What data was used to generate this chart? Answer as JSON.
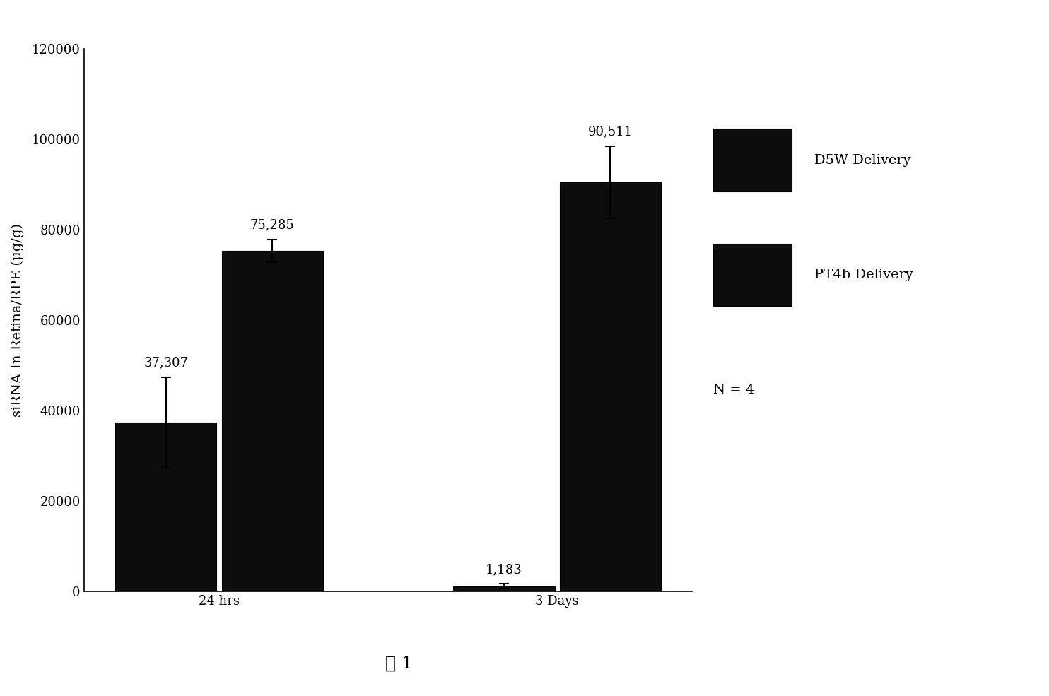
{
  "groups": [
    "24 hrs",
    "3 Days"
  ],
  "series": [
    "D5W Delivery",
    "PT4b Delivery"
  ],
  "values": [
    [
      37307,
      75285
    ],
    [
      1183,
      90511
    ]
  ],
  "errors": [
    [
      10000,
      2500
    ],
    [
      500,
      8000
    ]
  ],
  "value_labels": [
    [
      "37,307",
      "75,285"
    ],
    [
      "1,183",
      "90,511"
    ]
  ],
  "bar_colors": [
    "#0d0d0d",
    "#0d0d0d"
  ],
  "ylabel": "siRNA In Retina/RPE (μg/g)",
  "ylim": [
    0,
    120000
  ],
  "yticks": [
    0,
    20000,
    40000,
    60000,
    80000,
    100000,
    120000
  ],
  "ytick_labels": [
    "0",
    "20000",
    "40000",
    "60000",
    "80000",
    "100000",
    "120000"
  ],
  "legend_labels": [
    "D5W Delivery",
    "PT4b Delivery"
  ],
  "note": "N = 4",
  "caption": "图 1",
  "background_color": "#ffffff",
  "label_fontsize": 14,
  "tick_fontsize": 13,
  "annotation_fontsize": 13,
  "legend_fontsize": 14,
  "caption_fontsize": 18,
  "note_fontsize": 14
}
